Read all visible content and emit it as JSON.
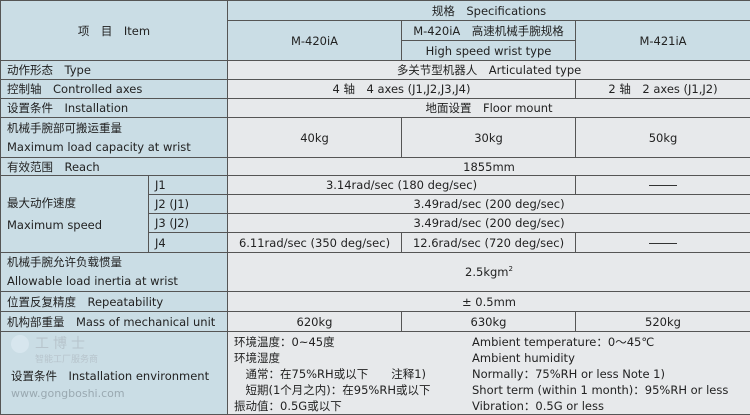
{
  "header": {
    "item": "项　目　Item",
    "specs": "规格　Specifications",
    "models": [
      "M-420iA",
      "M-420iA　高速机械手腕规格",
      "M-421iA"
    ],
    "model_hs_sub": "High speed wrist type"
  },
  "rows": {
    "type": {
      "label": "动作形态　Type",
      "value": "多关节型机器人　Articulated type"
    },
    "axes": {
      "label": "控制轴　Controlled axes",
      "v1": "4 轴　4 axes (J1,J2,J3,J4)",
      "v2": "2 轴　2 axes (J1,J2)"
    },
    "install": {
      "label": "设置条件　Installation",
      "value": "地面设置　Floor mount"
    },
    "load": {
      "label_cn": "机械手腕部可搬运重量",
      "label_en": "Maximum load capacity at wrist",
      "values": [
        "40kg",
        "30kg",
        "50kg"
      ]
    },
    "reach": {
      "label": "有效范围　Reach",
      "value": "1855mm"
    },
    "speed": {
      "label_cn": "最大动作速度",
      "label_en": "Maximum speed",
      "j1": {
        "axis": "J1",
        "v": "3.14rad/sec (180 deg/sec)",
        "v421": "——"
      },
      "j2": {
        "axis": "J2 (J1)",
        "v": "3.49rad/sec (200 deg/sec)"
      },
      "j3": {
        "axis": "J3 (J2)",
        "v": "3.49rad/sec (200 deg/sec)"
      },
      "j4": {
        "axis": "J4",
        "v1": "6.11rad/sec (350 deg/sec)",
        "v2": "12.6rad/sec (720 deg/sec)",
        "v421": "——"
      }
    },
    "inertia": {
      "label_cn": "机械手腕允许负载惯量",
      "label_en": "Allowable load inertia at wrist",
      "value": "2.5kgm",
      "sup": "2"
    },
    "repeat": {
      "label": "位置反复精度　Repeatability",
      "value": "± 0.5mm"
    },
    "mass": {
      "label": "机构部重量　Mass of mechanical unit",
      "values": [
        "620kg",
        "630kg",
        "520kg"
      ]
    },
    "env": {
      "label": "设置条件　Installation environment",
      "cn": [
        "环境温度：0~45度",
        "环境湿度",
        "　通常：在75%RH或以下　　注释1)",
        "　短期(1个月之内)：在95%RH或以下",
        "振动值：0.5G或以下"
      ],
      "en": [
        "Ambient temperature：0～45℃",
        "Ambient humidity",
        "Normally：75%RH or less  Note 1)",
        "Short term (within 1 month)：95%RH or less",
        "Vibration：0.5G or less"
      ]
    }
  },
  "watermark": {
    "brand": "工博士",
    "tagline": "智能工厂服务商",
    "url": "www.gongboshi.com"
  }
}
